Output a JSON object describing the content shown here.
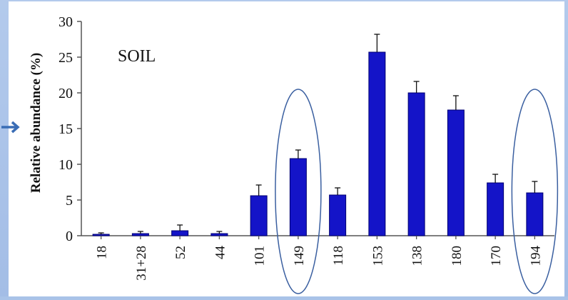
{
  "colors": {
    "bar": "#1414c8",
    "bar_edge": "#000070",
    "axis": "#555555",
    "ellipse": "#3a5fa0",
    "arrow": "#3a6db5"
  },
  "icons": {
    "pointer": "arrow-right-icon"
  },
  "chart_data": {
    "type": "bar",
    "title": "SOIL",
    "xlabel": "",
    "ylabel": "Relative abundance (%)",
    "categories": [
      "18",
      "31+28",
      "52",
      "44",
      "101",
      "149",
      "118",
      "153",
      "138",
      "180",
      "170",
      "194"
    ],
    "values": [
      0.2,
      0.3,
      0.7,
      0.3,
      5.6,
      10.8,
      5.7,
      25.7,
      20.0,
      17.6,
      7.4,
      6.0
    ],
    "errors": [
      0.2,
      0.3,
      0.8,
      0.3,
      1.5,
      1.2,
      1.0,
      2.5,
      1.6,
      2.0,
      1.2,
      1.6
    ],
    "ylim": [
      0,
      30
    ],
    "yticks": [
      0,
      5,
      10,
      15,
      20,
      25,
      30
    ],
    "grid": false,
    "highlighted_categories": [
      "149",
      "194"
    ]
  }
}
